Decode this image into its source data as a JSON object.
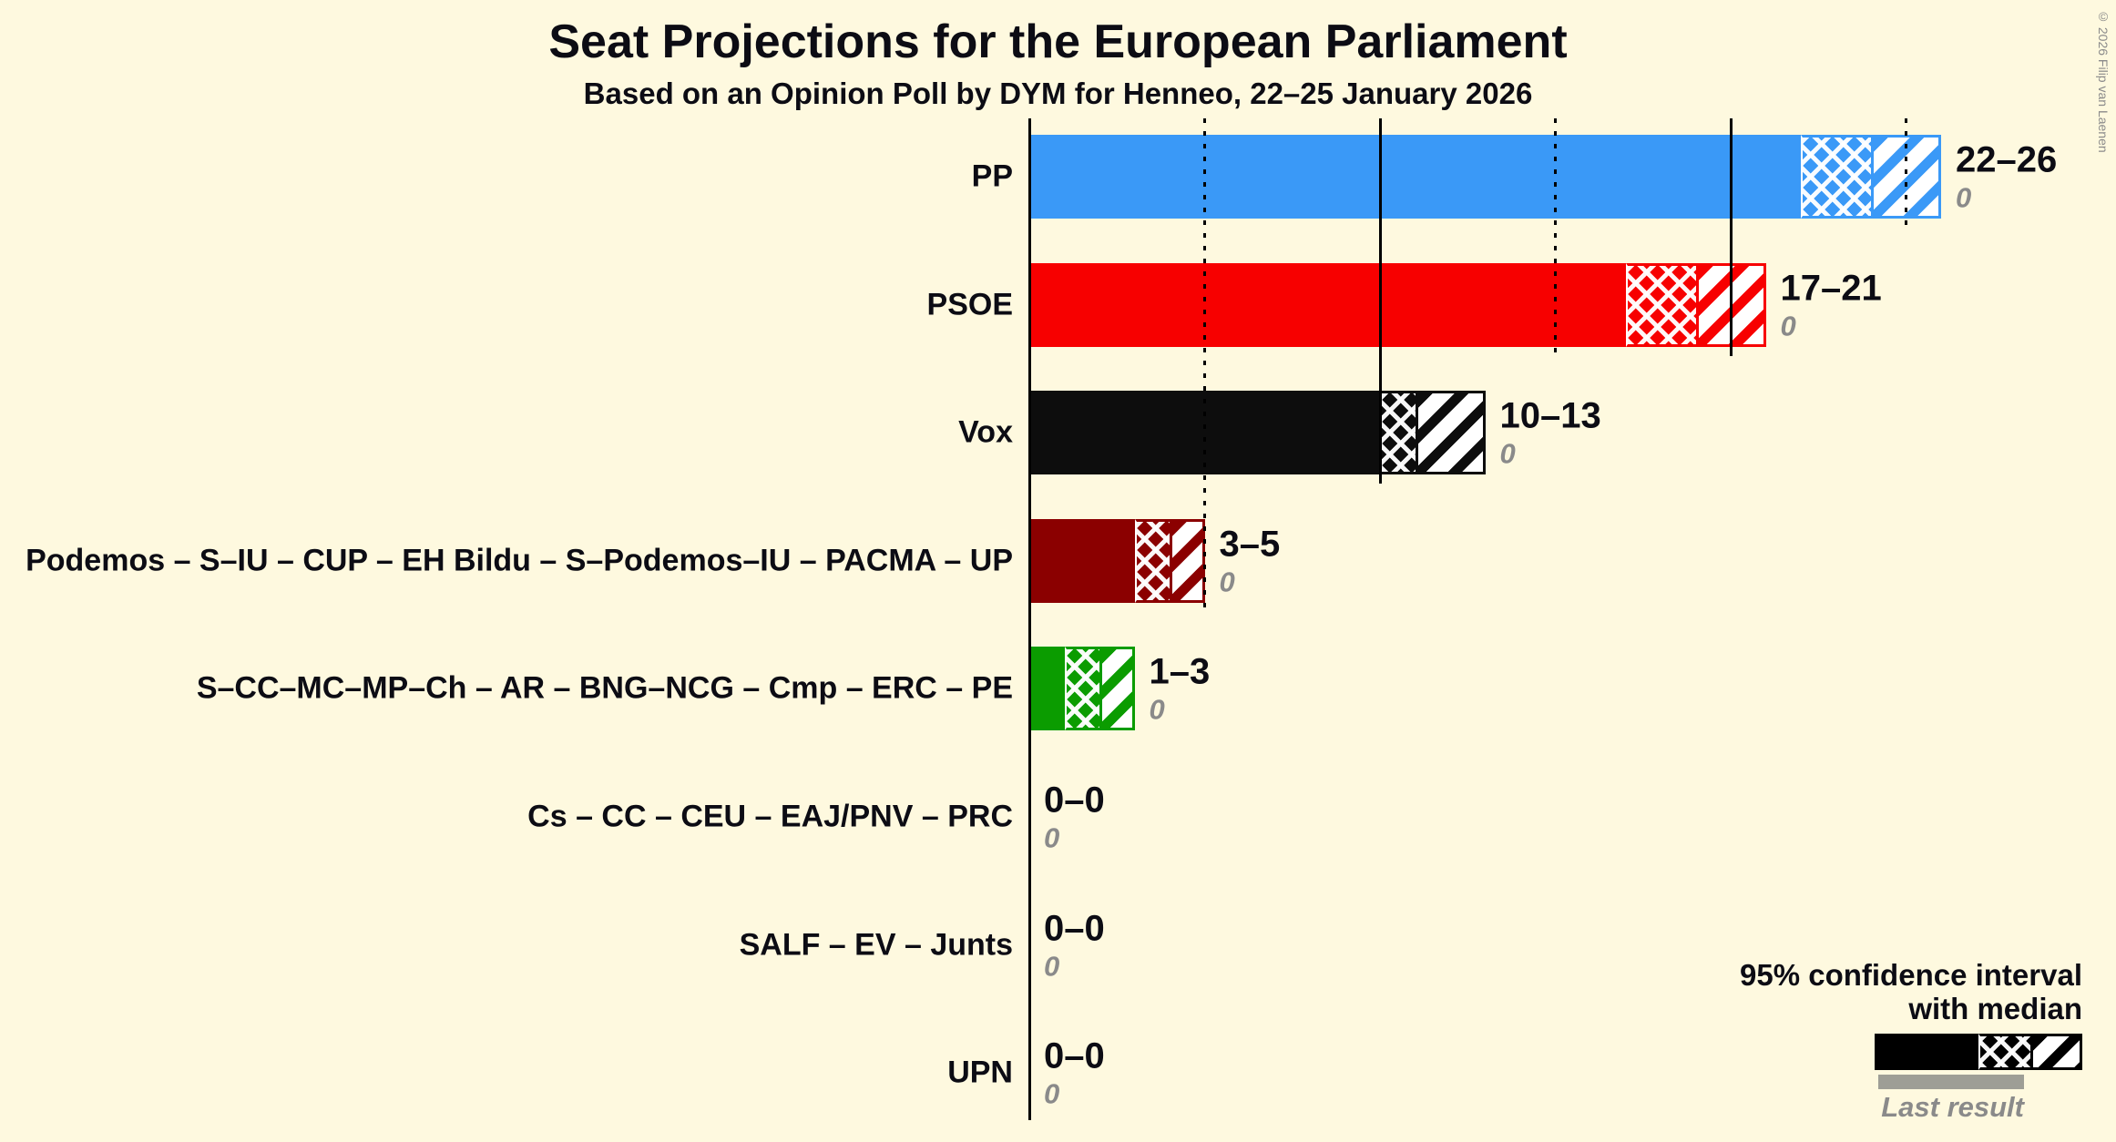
{
  "copyright": "© 2026 Filip van Laenen",
  "colors": {
    "background": "#FEF9DF",
    "axis": "#000000",
    "last_result_bar": "#9E9E96"
  },
  "chart_data": {
    "type": "bar",
    "orientation": "horizontal",
    "title": "Seat Projections for the European Parliament",
    "subtitle": "Based on an Opinion Poll by DYM for Henneo, 22–25 January 2026",
    "x_axis": {
      "min": 0,
      "max": 26,
      "gridlines": [
        {
          "value": 5,
          "style": "dotted"
        },
        {
          "value": 10,
          "style": "solid"
        },
        {
          "value": 15,
          "style": "dotted"
        },
        {
          "value": 20,
          "style": "solid"
        },
        {
          "value": 25,
          "style": "dotted"
        }
      ]
    },
    "legend": {
      "ci_line1": "95% confidence interval",
      "ci_line2": "with median",
      "last_result_label": "Last result"
    },
    "parties": [
      {
        "name": "PP",
        "color": "#3A99F7",
        "low": 22,
        "median": 24,
        "high": 26,
        "range_label": "22–26",
        "last_result": "0"
      },
      {
        "name": "PSOE",
        "color": "#F70000",
        "low": 17,
        "median": 19,
        "high": 21,
        "range_label": "17–21",
        "last_result": "0"
      },
      {
        "name": "Vox",
        "color": "#0D0D0D",
        "low": 10,
        "median": 11,
        "high": 13,
        "range_label": "10–13",
        "last_result": "0"
      },
      {
        "name": "Podemos – S–IU – CUP – EH Bildu – S–Podemos–IU – PACMA – UP",
        "color": "#8B0000",
        "low": 3,
        "median": 4,
        "high": 5,
        "range_label": "3–5",
        "last_result": "0"
      },
      {
        "name": "S–CC–MC–MP–Ch – AR – BNG–NCG – Cmp – ERC – PE",
        "color": "#0B9C00",
        "low": 1,
        "median": 2,
        "high": 3,
        "range_label": "1–3",
        "last_result": "0"
      },
      {
        "name": "Cs – CC – CEU – EAJ/PNV – PRC",
        "color": "#0D0D0D",
        "low": 0,
        "median": 0,
        "high": 0,
        "range_label": "0–0",
        "last_result": "0"
      },
      {
        "name": "SALF – EV – Junts",
        "color": "#0D0D0D",
        "low": 0,
        "median": 0,
        "high": 0,
        "range_label": "0–0",
        "last_result": "0"
      },
      {
        "name": "UPN",
        "color": "#0D0D0D",
        "low": 0,
        "median": 0,
        "high": 0,
        "range_label": "0–0",
        "last_result": "0"
      }
    ]
  }
}
